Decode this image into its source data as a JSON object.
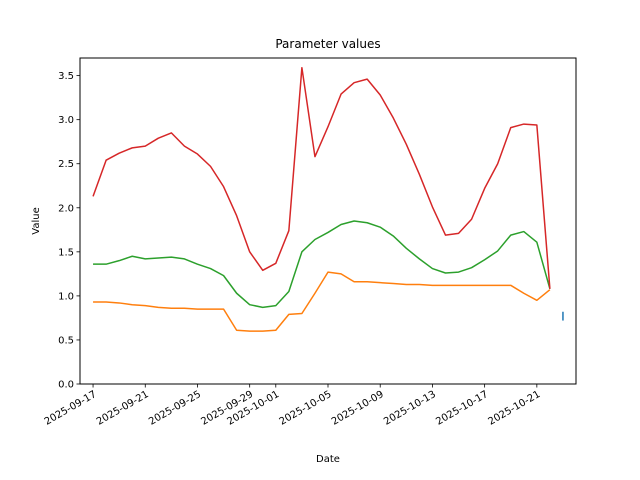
{
  "chart_data": {
    "type": "line",
    "title": "Parameter values",
    "xlabel": "Date",
    "ylabel": "Value",
    "ylim": [
      0,
      3.7
    ],
    "xlim": [
      "2025-09-16",
      "2025-10-24"
    ],
    "grid": false,
    "legend": "none",
    "y_ticks": [
      "0.0",
      "0.5",
      "1.0",
      "1.5",
      "2.0",
      "2.5",
      "3.0",
      "3.5"
    ],
    "x_ticks": [
      "2025-09-17",
      "2025-09-21",
      "2025-09-25",
      "2025-09-29",
      "2025-10-01",
      "2025-10-05",
      "2025-10-09",
      "2025-10-13",
      "2025-10-17",
      "2025-10-21"
    ],
    "dates": [
      "2025-09-17",
      "2025-09-18",
      "2025-09-19",
      "2025-09-20",
      "2025-09-21",
      "2025-09-22",
      "2025-09-23",
      "2025-09-24",
      "2025-09-25",
      "2025-09-26",
      "2025-09-27",
      "2025-09-28",
      "2025-09-29",
      "2025-09-30",
      "2025-10-01",
      "2025-10-02",
      "2025-10-03",
      "2025-10-04",
      "2025-10-05",
      "2025-10-06",
      "2025-10-07",
      "2025-10-08",
      "2025-10-09",
      "2025-10-10",
      "2025-10-11",
      "2025-10-12",
      "2025-10-13",
      "2025-10-14",
      "2025-10-15",
      "2025-10-16",
      "2025-10-17",
      "2025-10-18",
      "2025-10-19",
      "2025-10-20",
      "2025-10-21",
      "2025-10-22"
    ],
    "series": [
      {
        "color": "#1f77b4",
        "points": [
          [
            "2025-10-23",
            0.72
          ],
          [
            "2025-10-23",
            0.82
          ]
        ]
      },
      {
        "color": "#ff7f0e",
        "values": [
          0.93,
          0.93,
          0.92,
          0.9,
          0.89,
          0.87,
          0.86,
          0.86,
          0.85,
          0.85,
          0.85,
          0.61,
          0.6,
          0.6,
          0.61,
          0.79,
          0.8,
          1.03,
          1.27,
          1.25,
          1.16,
          1.16,
          1.15,
          1.14,
          1.13,
          1.13,
          1.12,
          1.12,
          1.12,
          1.12,
          1.12,
          1.12,
          1.12,
          1.03,
          0.95,
          1.07
        ]
      },
      {
        "color": "#2ca02c",
        "values": [
          1.36,
          1.36,
          1.4,
          1.45,
          1.42,
          1.43,
          1.44,
          1.42,
          1.36,
          1.31,
          1.23,
          1.03,
          0.9,
          0.87,
          0.89,
          1.05,
          1.5,
          1.64,
          1.72,
          1.81,
          1.85,
          1.83,
          1.78,
          1.68,
          1.54,
          1.42,
          1.31,
          1.26,
          1.27,
          1.32,
          1.41,
          1.51,
          1.69,
          1.73,
          1.61,
          1.08
        ]
      },
      {
        "color": "#d62728",
        "values": [
          2.13,
          2.54,
          2.62,
          2.68,
          2.7,
          2.79,
          2.85,
          2.7,
          2.61,
          2.47,
          2.24,
          1.91,
          1.5,
          1.29,
          1.37,
          1.74,
          3.59,
          2.58,
          2.92,
          3.29,
          3.42,
          3.46,
          3.28,
          3.02,
          2.72,
          2.38,
          2.01,
          1.69,
          1.71,
          1.87,
          2.22,
          2.5,
          2.91,
          2.95,
          2.94,
          1.08
        ]
      }
    ]
  }
}
